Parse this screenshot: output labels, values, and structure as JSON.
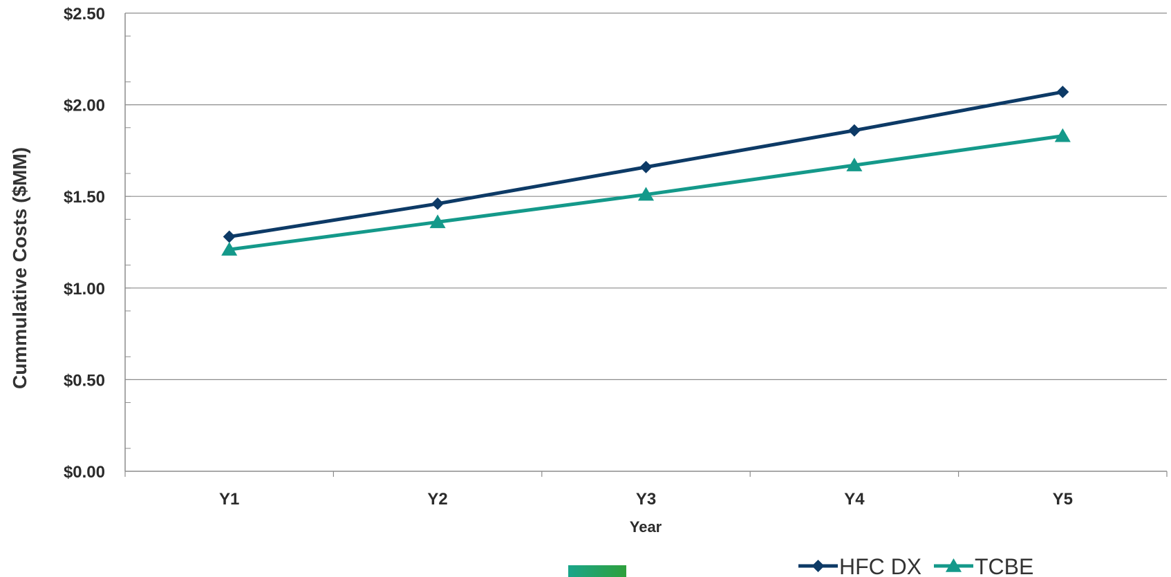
{
  "chart_data": {
    "type": "line",
    "categories": [
      "Y1",
      "Y2",
      "Y3",
      "Y4",
      "Y5"
    ],
    "series": [
      {
        "name": "HFC DX",
        "values": [
          1.28,
          1.46,
          1.66,
          1.86,
          2.07
        ],
        "color": "#0d3a66",
        "marker": "diamond"
      },
      {
        "name": "TCBE",
        "values": [
          1.21,
          1.36,
          1.51,
          1.67,
          1.83
        ],
        "color": "#14998a",
        "marker": "triangle"
      }
    ],
    "xlabel": "Year",
    "ylabel": "Cummulative Costs ($MM)",
    "ylim": [
      0,
      2.5
    ],
    "yticks": [
      "$0.00",
      "$0.50",
      "$1.00",
      "$1.50",
      "$2.00",
      "$2.50"
    ],
    "grid": true,
    "legend_position": "bottom-right"
  },
  "decor": {
    "swatch_colors": [
      "#1aa58a",
      "#2ea03c"
    ]
  }
}
